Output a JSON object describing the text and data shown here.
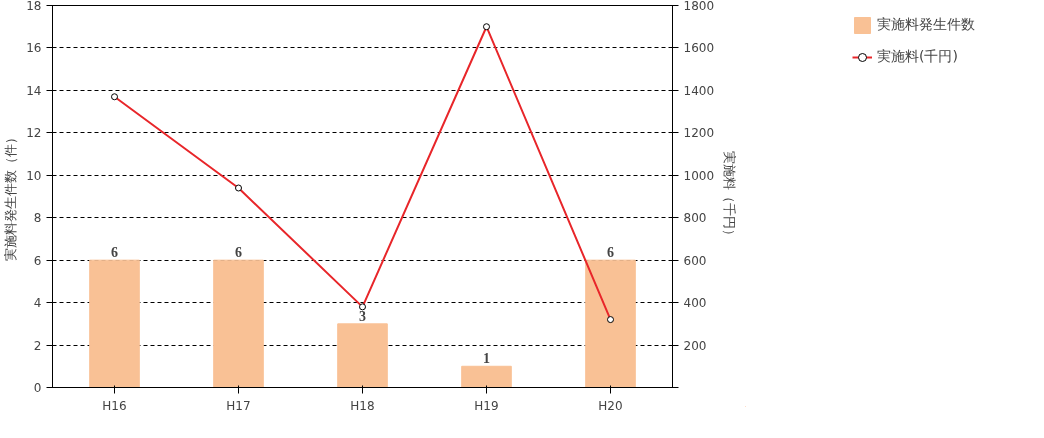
{
  "chart_data": {
    "type": "bar",
    "categories": [
      "H16",
      "H17",
      "H18",
      "H19",
      "H20"
    ],
    "ylabel": "実施料発生件数（件）",
    "y2label": "実施料（千円）",
    "series": [
      {
        "name": "実施料発生件数",
        "color": "#f9c195",
        "values": [
          6,
          6,
          3,
          1,
          6
        ],
        "value_labels": [
          "6",
          "6",
          "3",
          "1",
          "6"
        ]
      },
      {
        "name": "実施料(千円)",
        "type": "line",
        "axis": "y2",
        "color": "#e8262a",
        "marker": "circle",
        "values": [
          1370,
          940,
          380,
          1700,
          320
        ]
      }
    ],
    "ylim": [
      0,
      18
    ],
    "yticks": [
      0,
      2,
      4,
      6,
      8,
      10,
      12,
      14,
      16,
      18
    ],
    "y2lim": [
      0,
      1800
    ],
    "y2ticks": [
      {
        "value": 0,
        "label": null
      },
      200,
      400,
      600,
      800,
      1000,
      1200,
      1400,
      1600,
      1800
    ],
    "grid": "y",
    "legend": "top right"
  }
}
